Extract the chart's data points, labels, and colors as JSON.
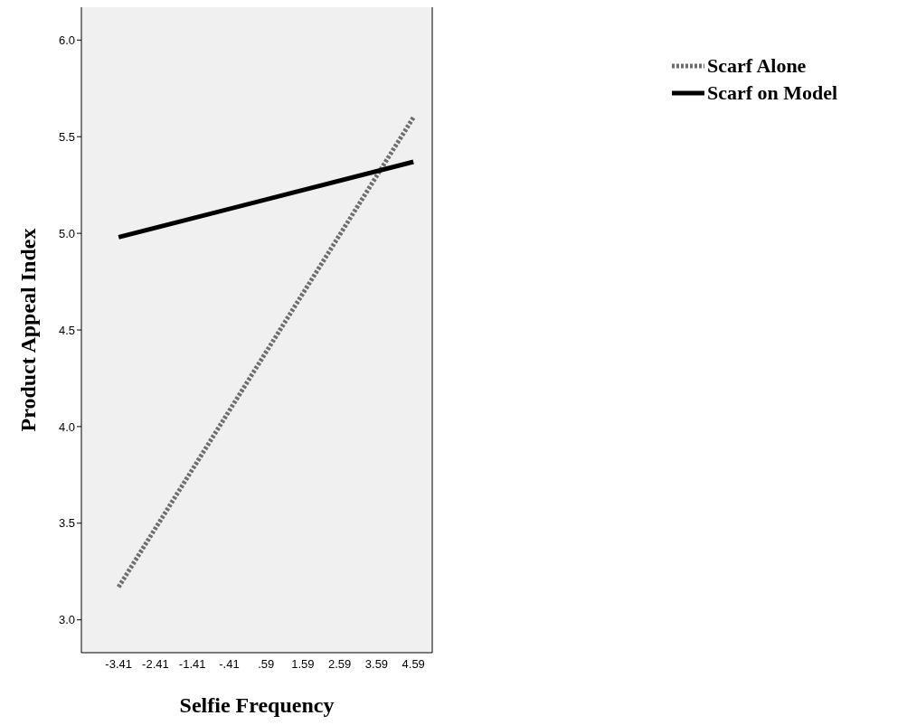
{
  "chart_data": {
    "type": "line",
    "xlabel": "Selfie Frequency",
    "ylabel": "Product Appeal Index",
    "x": [
      -3.41,
      4.59
    ],
    "series": [
      {
        "name": "Scarf Alone",
        "color": "#6e6e6e",
        "values": [
          3.17,
          5.6
        ],
        "line_style": "dotted"
      },
      {
        "name": "Scarf on Model",
        "color": "#000000",
        "values": [
          4.98,
          5.37
        ],
        "line_style": "solid"
      }
    ],
    "xlim": [
      -4.42,
      5.1
    ],
    "xticks": [
      -3.41,
      -2.41,
      -1.41,
      {
        "value": -0.41,
        "label": "-.41"
      },
      {
        "value": 0.59,
        "label": ".59"
      },
      1.59,
      2.59,
      3.59,
      4.59
    ],
    "ylim": [
      2.83,
      6.17
    ],
    "yticks": [
      {
        "value": 3,
        "label": "3.0"
      },
      3.5,
      {
        "value": 4,
        "label": "4.0"
      },
      4.5,
      {
        "value": 5,
        "label": "5.0"
      },
      5.5,
      {
        "value": 6,
        "label": "6.0"
      }
    ],
    "grid": false,
    "legend": "top right",
    "marker": "none"
  }
}
